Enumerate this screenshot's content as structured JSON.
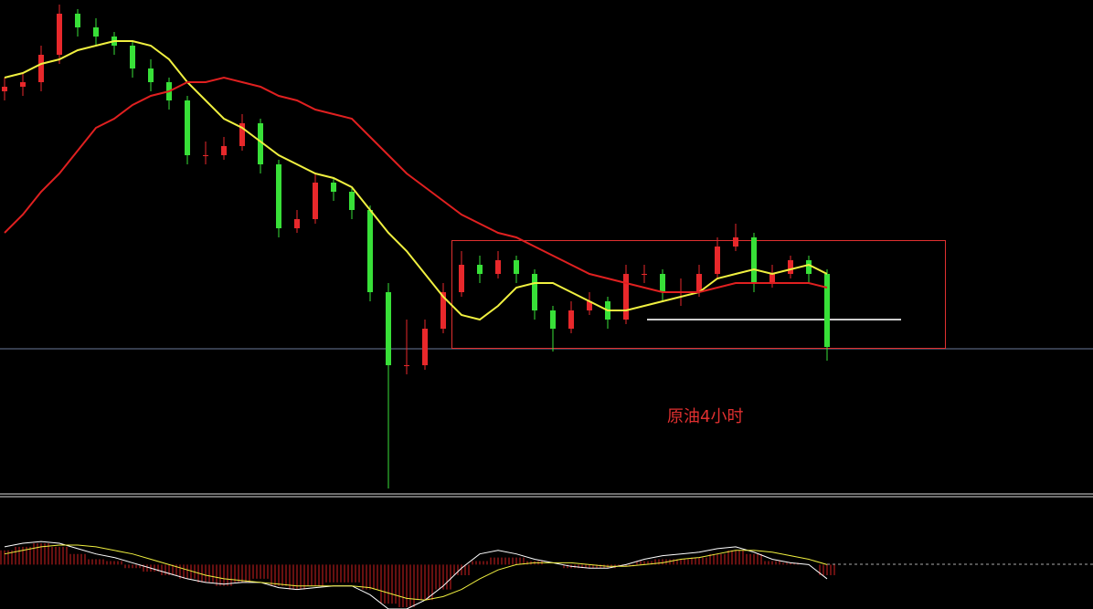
{
  "chart_data": {
    "type": "candlestick",
    "annotation": "原油4小时",
    "up_color": "#e8282b",
    "down_color": "#38e038",
    "ylim": [
      0,
      108
    ],
    "candles": [
      [
        88,
        91,
        86,
        89
      ],
      [
        89,
        92,
        87,
        90
      ],
      [
        90,
        98,
        88,
        96
      ],
      [
        96,
        107,
        94,
        105
      ],
      [
        105,
        106,
        100,
        102
      ],
      [
        102,
        104,
        98,
        100
      ],
      [
        100,
        101,
        96,
        98
      ],
      [
        98,
        99,
        91,
        93
      ],
      [
        93,
        95,
        88,
        90
      ],
      [
        90,
        91,
        84,
        86
      ],
      [
        86,
        87,
        72,
        74
      ],
      [
        74,
        77,
        72,
        74
      ],
      [
        74,
        78,
        73,
        76
      ],
      [
        76,
        83,
        75,
        81
      ],
      [
        81,
        82,
        70,
        72
      ],
      [
        72,
        73,
        56,
        58
      ],
      [
        58,
        62,
        57,
        60
      ],
      [
        60,
        70,
        59,
        68
      ],
      [
        68,
        69,
        64,
        66
      ],
      [
        66,
        67,
        60,
        62
      ],
      [
        62,
        63,
        42,
        44
      ],
      [
        44,
        46,
        1,
        28
      ],
      [
        28,
        38,
        26,
        28
      ],
      [
        28,
        38,
        27,
        36
      ],
      [
        36,
        46,
        35,
        44
      ],
      [
        44,
        53,
        43,
        50
      ],
      [
        50,
        52,
        46,
        48
      ],
      [
        48,
        53,
        47,
        51
      ],
      [
        51,
        52,
        46,
        48
      ],
      [
        48,
        49,
        38,
        40
      ],
      [
        40,
        41,
        31,
        36
      ],
      [
        36,
        42,
        35,
        40
      ],
      [
        40,
        44,
        39,
        42
      ],
      [
        42,
        43,
        36,
        38
      ],
      [
        38,
        50,
        37,
        48
      ],
      [
        48,
        50,
        46,
        48
      ],
      [
        48,
        49,
        42,
        44
      ],
      [
        44,
        47,
        41,
        44
      ],
      [
        44,
        50,
        43,
        48
      ],
      [
        48,
        56,
        47,
        54
      ],
      [
        54,
        59,
        53,
        56
      ],
      [
        56,
        57,
        44,
        46
      ],
      [
        46,
        50,
        45,
        48
      ],
      [
        48,
        52,
        47,
        51
      ],
      [
        51,
        52,
        46,
        48
      ],
      [
        48,
        49,
        29,
        32
      ]
    ],
    "series": [
      {
        "color": "#f0f040",
        "values": [
          91,
          92,
          94,
          95,
          97,
          98,
          99,
          99,
          98,
          95,
          90,
          86,
          82,
          80,
          77,
          74,
          72,
          70,
          69,
          67,
          62,
          57,
          53,
          48,
          43,
          39,
          38,
          41,
          45,
          46,
          46,
          44,
          42,
          40,
          40,
          41,
          42,
          43,
          44,
          47,
          48,
          49,
          48,
          49,
          50,
          48
        ]
      },
      {
        "color": "#e02020",
        "values": [
          57,
          61,
          66,
          70,
          75,
          80,
          82,
          85,
          87,
          88,
          90,
          90,
          91,
          90,
          89,
          87,
          86,
          84,
          83,
          82,
          78,
          74,
          70,
          67,
          64,
          61,
          59,
          57,
          56,
          54,
          52,
          50,
          48,
          47,
          46,
          45,
          44,
          44,
          44,
          45,
          46,
          46,
          46,
          46,
          46,
          45
        ]
      }
    ],
    "macd": {
      "ylim": [
        -25,
        30
      ],
      "hist_color": "#d02020",
      "hist": [
        8,
        10,
        12,
        10,
        6,
        3,
        2,
        -2,
        -4,
        -6,
        -8,
        -10,
        -12,
        -10,
        -8,
        -12,
        -14,
        -12,
        -10,
        -10,
        -14,
        -22,
        -24,
        -20,
        -14,
        -6,
        2,
        4,
        4,
        2,
        0,
        -2,
        -2,
        -2,
        -1,
        2,
        3,
        3,
        4,
        6,
        8,
        6,
        2,
        1,
        0,
        -6
      ],
      "dif": {
        "color": "#ffffff",
        "values": [
          10,
          12,
          13,
          12,
          9,
          6,
          4,
          1,
          -2,
          -5,
          -8,
          -10,
          -11,
          -10,
          -10,
          -13,
          -14,
          -13,
          -12,
          -12,
          -17,
          -25,
          -25,
          -20,
          -12,
          -2,
          6,
          8,
          6,
          3,
          1,
          -1,
          -2,
          -2,
          0,
          3,
          5,
          6,
          7,
          9,
          10,
          7,
          3,
          1,
          0,
          -8
        ]
      },
      "dea": {
        "color": "#f0f040",
        "values": [
          6,
          8,
          10,
          11,
          11,
          10,
          8,
          6,
          3,
          0,
          -3,
          -6,
          -8,
          -9,
          -10,
          -11,
          -12,
          -12,
          -12,
          -12,
          -13,
          -16,
          -19,
          -20,
          -18,
          -14,
          -8,
          -3,
          0,
          1,
          1,
          1,
          0,
          -1,
          -1,
          0,
          1,
          3,
          4,
          6,
          8,
          8,
          7,
          5,
          3,
          0
        ]
      }
    }
  }
}
